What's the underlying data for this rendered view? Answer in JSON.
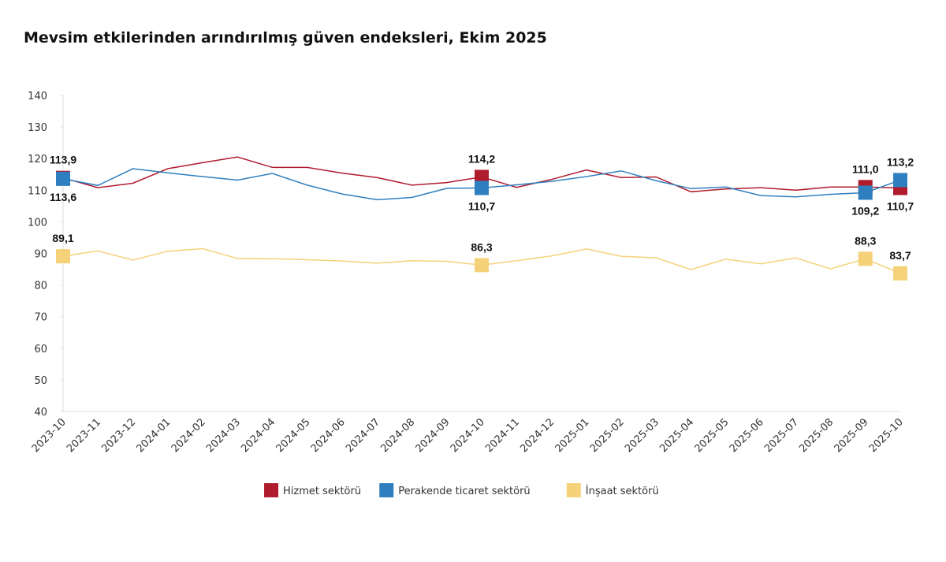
{
  "chart_data": {
    "type": "line",
    "title": "Mevsim etkilerinden arındırılmış güven endeksleri, Ekim 2025",
    "categories": [
      "2023-10",
      "2023-11",
      "2023-12",
      "2024-01",
      "2024-02",
      "2024-03",
      "2024-04",
      "2024-05",
      "2024-06",
      "2024-07",
      "2024-08",
      "2024-09",
      "2024-10",
      "2024-11",
      "2024-12",
      "2025-01",
      "2025-02",
      "2025-03",
      "2025-04",
      "2025-05",
      "2025-06",
      "2025-07",
      "2025-08",
      "2025-09",
      "2025-10"
    ],
    "series": [
      {
        "name": "Hizmet sektörü",
        "color": "#b01c2e",
        "values": [
          113.9,
          110.8,
          112.2,
          116.8,
          118.7,
          120.5,
          117.2,
          117.2,
          115.4,
          114.0,
          111.6,
          112.4,
          114.2,
          110.9,
          113.4,
          116.4,
          114.0,
          114.2,
          109.5,
          110.4,
          110.8,
          110.0,
          111.0,
          111.0,
          110.7
        ],
        "value_labels": [
          "113,9",
          null,
          null,
          null,
          null,
          null,
          null,
          null,
          null,
          null,
          null,
          null,
          "114,2",
          null,
          null,
          null,
          null,
          null,
          null,
          null,
          null,
          null,
          null,
          "111,0",
          "110,7"
        ]
      },
      {
        "name": "Perakende ticaret sektörü",
        "color": "#2e7fc0",
        "values": [
          113.6,
          111.5,
          116.8,
          115.5,
          114.3,
          113.2,
          115.3,
          111.6,
          108.8,
          107.0,
          107.7,
          110.6,
          110.7,
          111.7,
          112.8,
          114.3,
          116.1,
          113.0,
          110.5,
          111.0,
          108.3,
          107.9,
          108.7,
          109.2,
          113.2
        ],
        "value_labels": [
          "113,6",
          null,
          null,
          null,
          null,
          null,
          null,
          null,
          null,
          null,
          null,
          null,
          "110,7",
          null,
          null,
          null,
          null,
          null,
          null,
          null,
          null,
          null,
          null,
          "109,2",
          "113,2"
        ]
      },
      {
        "name": "İnşaat sektörü",
        "color": "#f5d27a",
        "values": [
          89.1,
          90.8,
          87.9,
          90.7,
          91.5,
          88.4,
          88.3,
          88.0,
          87.6,
          86.9,
          87.7,
          87.5,
          86.3,
          87.7,
          89.2,
          91.4,
          89.1,
          88.6,
          84.9,
          88.2,
          86.7,
          88.6,
          85.1,
          88.3,
          83.7
        ],
        "value_labels": [
          "89,1",
          null,
          null,
          null,
          null,
          null,
          null,
          null,
          null,
          null,
          null,
          null,
          "86,3",
          null,
          null,
          null,
          null,
          null,
          null,
          null,
          null,
          null,
          null,
          "88,3",
          "83,7"
        ]
      }
    ],
    "ylim": [
      40,
      140
    ],
    "yticks": [
      40,
      50,
      60,
      70,
      80,
      90,
      100,
      110,
      120,
      130,
      140
    ],
    "grid": false,
    "legend": "bottom"
  }
}
